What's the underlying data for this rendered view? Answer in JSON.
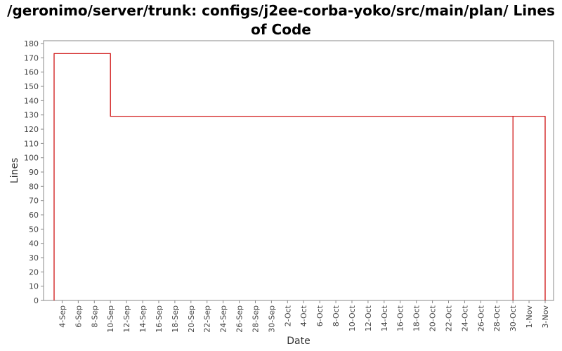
{
  "chart_data": {
    "type": "line",
    "title": "/geronimo/server/trunk: configs/j2ee-corba-yoko/src/main/plan/ Lines of Code",
    "xlabel": "Date",
    "ylabel": "Lines",
    "ylim": [
      0,
      182
    ],
    "yticks": [
      0,
      10,
      20,
      30,
      40,
      50,
      60,
      70,
      80,
      90,
      100,
      110,
      120,
      130,
      140,
      150,
      160,
      170,
      180
    ],
    "xlim": [
      "2008-09-03",
      "2008-11-03"
    ],
    "xticks": [
      {
        "date": "2008-09-04",
        "label": "4-Sep"
      },
      {
        "date": "2008-09-06",
        "label": "6-Sep"
      },
      {
        "date": "2008-09-08",
        "label": "8-Sep"
      },
      {
        "date": "2008-09-10",
        "label": "10-Sep"
      },
      {
        "date": "2008-09-12",
        "label": "12-Sep"
      },
      {
        "date": "2008-09-14",
        "label": "14-Sep"
      },
      {
        "date": "2008-09-16",
        "label": "16-Sep"
      },
      {
        "date": "2008-09-18",
        "label": "18-Sep"
      },
      {
        "date": "2008-09-20",
        "label": "20-Sep"
      },
      {
        "date": "2008-09-22",
        "label": "22-Sep"
      },
      {
        "date": "2008-09-24",
        "label": "24-Sep"
      },
      {
        "date": "2008-09-26",
        "label": "26-Sep"
      },
      {
        "date": "2008-09-28",
        "label": "28-Sep"
      },
      {
        "date": "2008-09-30",
        "label": "30-Sep"
      },
      {
        "date": "2008-10-02",
        "label": "2-Oct"
      },
      {
        "date": "2008-10-04",
        "label": "4-Oct"
      },
      {
        "date": "2008-10-06",
        "label": "6-Oct"
      },
      {
        "date": "2008-10-08",
        "label": "8-Oct"
      },
      {
        "date": "2008-10-10",
        "label": "10-Oct"
      },
      {
        "date": "2008-10-12",
        "label": "12-Oct"
      },
      {
        "date": "2008-10-14",
        "label": "14-Oct"
      },
      {
        "date": "2008-10-16",
        "label": "16-Oct"
      },
      {
        "date": "2008-10-18",
        "label": "18-Oct"
      },
      {
        "date": "2008-10-20",
        "label": "20-Oct"
      },
      {
        "date": "2008-10-22",
        "label": "22-Oct"
      },
      {
        "date": "2008-10-24",
        "label": "24-Oct"
      },
      {
        "date": "2008-10-26",
        "label": "26-Oct"
      },
      {
        "date": "2008-10-28",
        "label": "28-Oct"
      },
      {
        "date": "2008-10-30",
        "label": "30-Oct"
      },
      {
        "date": "2008-11-01",
        "label": "1-Nov"
      },
      {
        "date": "2008-11-03",
        "label": "3-Nov"
      }
    ],
    "series": [
      {
        "color": "#cc0000",
        "step": true,
        "points": [
          {
            "x": "2008-09-03",
            "y": 0
          },
          {
            "x": "2008-09-03",
            "y": 173
          },
          {
            "x": "2008-09-10",
            "y": 173
          },
          {
            "x": "2008-09-10",
            "y": 129
          },
          {
            "x": "2008-10-30",
            "y": 129
          },
          {
            "x": "2008-10-30",
            "y": 0
          },
          {
            "x": "2008-10-30",
            "y": 129
          },
          {
            "x": "2008-11-03",
            "y": 129
          },
          {
            "x": "2008-11-03",
            "y": 0
          }
        ]
      }
    ],
    "grid": false,
    "legend": "none"
  }
}
